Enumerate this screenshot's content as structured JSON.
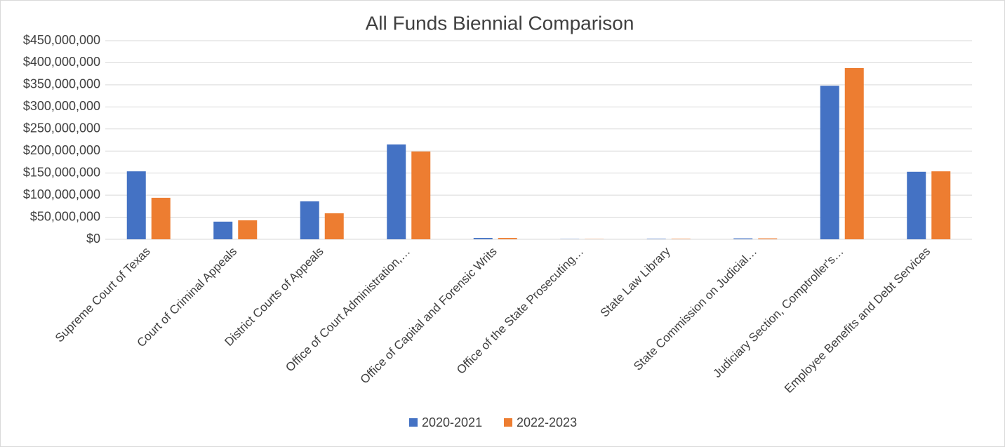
{
  "chart_data": {
    "type": "bar",
    "title": "All Funds Biennial Comparison",
    "categories": [
      "Supreme Court of Texas",
      "Court of Criminal Appeals",
      "District Courts of Appeals",
      "Office of Court Administration,…",
      "Office of Capital and Forensic Writs",
      "Office of the State Prosecuting…",
      "State Law Library",
      "State Commission on Judicial…",
      "Judiciary Section, Comptroller's…",
      "Employee Benefits and Debt Services"
    ],
    "series": [
      {
        "name": "2020-2021",
        "color": "#4472c4",
        "values": [
          154000000,
          40000000,
          86000000,
          215000000,
          3000000,
          500000,
          1000000,
          2000000,
          348000000,
          153000000
        ]
      },
      {
        "name": "2022-2023",
        "color": "#ed7d31",
        "values": [
          94000000,
          43000000,
          59000000,
          199000000,
          3000000,
          500000,
          1000000,
          2000000,
          388000000,
          154000000
        ]
      }
    ],
    "ylim": [
      0,
      450000000
    ],
    "yticks": [
      {
        "value": 0,
        "label": "$0"
      },
      {
        "value": 50000000,
        "label": "$50,000,000"
      },
      {
        "value": 100000000,
        "label": "$100,000,000"
      },
      {
        "value": 150000000,
        "label": "$150,000,000"
      },
      {
        "value": 200000000,
        "label": "$200,000,000"
      },
      {
        "value": 250000000,
        "label": "$250,000,000"
      },
      {
        "value": 300000000,
        "label": "$300,000,000"
      },
      {
        "value": 350000000,
        "label": "$350,000,000"
      },
      {
        "value": 400000000,
        "label": "$400,000,000"
      },
      {
        "value": 450000000,
        "label": "$450,000,000"
      }
    ],
    "grid": true,
    "legend": "bottom"
  }
}
